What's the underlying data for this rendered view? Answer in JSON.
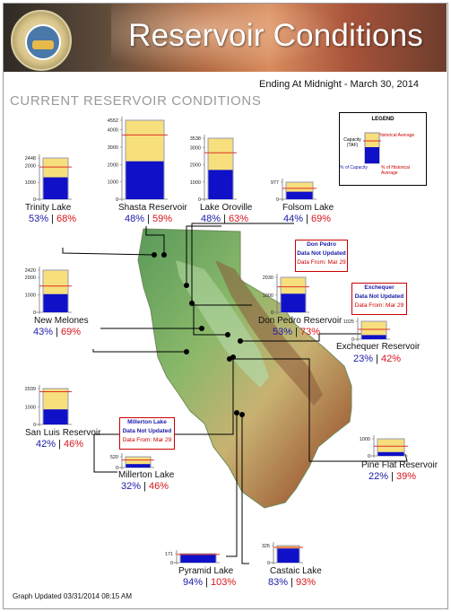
{
  "title": "Reservoir Conditions",
  "subtitle": "Ending At Midnight - March 30, 2014",
  "heading": "CURRENT RESERVOIR CONDITIONS",
  "footer": "Graph Updated 03/31/2014 08:15 AM",
  "legend": {
    "title": "LEGEND",
    "capacity": "Capacity (TAF)",
    "historical": "Historical Average",
    "pct_capacity": "% of Capacity",
    "pct_hist": "% of Historical Average"
  },
  "colors": {
    "storage": "#1010c8",
    "capacity": "#f6df7c",
    "hist_line": "#e03028",
    "pct_capacity_text": "#1a1aa8",
    "pct_hist_text": "#d8141c"
  },
  "notices": [
    {
      "name": "Don Pedro",
      "line1": "Data Not Updated",
      "line2": "Data From: Mar 29"
    },
    {
      "name": "Exchequer",
      "line1": "Data Not Updated",
      "line2": "Data From: Mar 29"
    },
    {
      "name": "Millerton Lake",
      "line1": "Data Not Updated",
      "line2": "Data From: Mar 29"
    }
  ],
  "reservoirs": [
    {
      "name": "Trinity Lake",
      "capacity": 2448,
      "ticks": [
        0,
        1000,
        2000,
        2448
      ],
      "pct_capacity": 53,
      "pct_hist": 68
    },
    {
      "name": "Shasta Reservoir",
      "capacity": 4552,
      "ticks": [
        0,
        1000,
        2000,
        3000,
        4000,
        4552
      ],
      "pct_capacity": 48,
      "pct_hist": 59
    },
    {
      "name": "Lake Oroville",
      "capacity": 3538,
      "ticks": [
        0,
        1000,
        2000,
        3000,
        3538
      ],
      "pct_capacity": 48,
      "pct_hist": 63
    },
    {
      "name": "Folsom Lake",
      "capacity": 977,
      "ticks": [
        0,
        977
      ],
      "pct_capacity": 44,
      "pct_hist": 69
    },
    {
      "name": "New Melones",
      "capacity": 2420,
      "ticks": [
        0,
        1000,
        2000,
        2420
      ],
      "pct_capacity": 43,
      "pct_hist": 69
    },
    {
      "name": "Don Pedro Reservoir",
      "capacity": 2030,
      "ticks": [
        0,
        1000,
        2030
      ],
      "pct_capacity": 53,
      "pct_hist": 73
    },
    {
      "name": "Exchequer Reservoir",
      "capacity": 1025,
      "ticks": [
        0,
        1025
      ],
      "pct_capacity": 23,
      "pct_hist": 42
    },
    {
      "name": "San Luis Reservoir",
      "capacity": 2039,
      "ticks": [
        0,
        1000,
        2039
      ],
      "pct_capacity": 42,
      "pct_hist": 46
    },
    {
      "name": "Millerton Lake",
      "capacity": 520,
      "ticks": [
        0,
        520
      ],
      "pct_capacity": 32,
      "pct_hist": 46
    },
    {
      "name": "Pine Flat Reservoir",
      "capacity": 1000,
      "ticks": [
        0,
        1000
      ],
      "pct_capacity": 22,
      "pct_hist": 39
    },
    {
      "name": "Pyramid Lake",
      "capacity": 171,
      "ticks": [
        0,
        171
      ],
      "pct_capacity": 94,
      "pct_hist": 103
    },
    {
      "name": "Castaic Lake",
      "capacity": 325,
      "ticks": [
        0,
        325
      ],
      "pct_capacity": 83,
      "pct_hist": 93
    }
  ]
}
